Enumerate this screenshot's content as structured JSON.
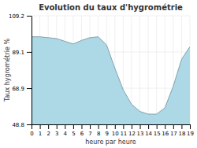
{
  "chart_data": {
    "type": "area",
    "title": "Evolution du taux d'hygrométrie",
    "xlabel": "heure par heure",
    "ylabel": "Taux hygrométrie %",
    "x": [
      0,
      1,
      2,
      3,
      4,
      5,
      6,
      7,
      8,
      9,
      10,
      11,
      12,
      13,
      14,
      15,
      16,
      17,
      18,
      19
    ],
    "values": [
      97.5,
      97.5,
      97.0,
      96.5,
      95.0,
      93.5,
      95.5,
      97.0,
      97.5,
      93.0,
      80.0,
      68.0,
      60.0,
      56.0,
      54.5,
      54.5,
      58.0,
      70.0,
      85.0,
      92.0
    ],
    "color": "#add8e6",
    "xlim": [
      0,
      19
    ],
    "ylim": [
      48.8,
      109.2
    ],
    "xticks": [
      0,
      1,
      2,
      3,
      4,
      5,
      6,
      7,
      8,
      9,
      10,
      11,
      12,
      13,
      14,
      15,
      16,
      17,
      18,
      19
    ],
    "yticks": [
      48.8,
      68.9,
      89.1,
      109.2
    ],
    "grid": true
  }
}
